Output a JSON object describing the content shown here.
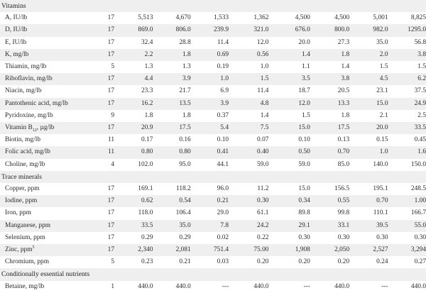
{
  "sections": [
    {
      "title": "Vitamins",
      "rows": [
        {
          "label": "A, IU/lb",
          "values": [
            "17",
            "5,513",
            "4,670",
            "1,533",
            "1,362",
            "4,500",
            "4,500",
            "5,001",
            "8,825"
          ]
        },
        {
          "label": "D, IU/lb",
          "values": [
            "17",
            "869.0",
            "806.0",
            "239.9",
            "321.0",
            "676.0",
            "800.0",
            "982.0",
            "1295.0"
          ]
        },
        {
          "label": "E, IU/lb",
          "values": [
            "17",
            "32.4",
            "28.8",
            "11.4",
            "12.0",
            "20.0",
            "27.3",
            "35.0",
            "56.8"
          ]
        },
        {
          "label": "K, mg/lb",
          "values": [
            "17",
            "2.2",
            "1.8",
            "0.69",
            "0.56",
            "1.4",
            "1.8",
            "2.0",
            "3.8"
          ]
        },
        {
          "label": "Thiamin, mg/lb",
          "values": [
            "5",
            "1.3",
            "1.3",
            "0.19",
            "1.0",
            "1.1",
            "1.4",
            "1.5",
            "1.5"
          ]
        },
        {
          "label": "Riboflavin, mg/lb",
          "values": [
            "17",
            "4.4",
            "3.9",
            "1.0",
            "1.5",
            "3.5",
            "3.8",
            "4.5",
            "6.2"
          ]
        },
        {
          "label": "Niacin, mg/lb",
          "values": [
            "17",
            "23.3",
            "21.7",
            "6.9",
            "11.4",
            "18.7",
            "20.5",
            "23.1",
            "37.5"
          ]
        },
        {
          "label": "Pantothenic acid, mg/lb",
          "values": [
            "17",
            "16.2",
            "13.5",
            "3.9",
            "4.8",
            "12.0",
            "13.3",
            "15.0",
            "24.9"
          ]
        },
        {
          "label": "Pyridoxine, mg/lb",
          "values": [
            "9",
            "1.8",
            "1.8",
            "0.37",
            "1.4",
            "1.5",
            "1.8",
            "2.1",
            "2.5"
          ]
        },
        {
          "label": "Vitamin B",
          "sub": "12",
          "suffix": ", µg/lb",
          "values": [
            "17",
            "20.9",
            "17.5",
            "5.4",
            "7.5",
            "15.0",
            "17.5",
            "20.0",
            "33.5"
          ]
        },
        {
          "label": "Biotin, mg/lb",
          "values": [
            "11",
            "0.17",
            "0.16",
            "0.10",
            "0.07",
            "0.10",
            "0.13",
            "0.15",
            "0.45"
          ]
        },
        {
          "label": "Folic acid, mg/lb",
          "values": [
            "11",
            "0.80",
            "0.80",
            "0.41",
            "0.40",
            "0.50",
            "0.70",
            "1.0",
            "1.6"
          ]
        },
        {
          "label": "Choline, mg/lb",
          "values": [
            "4",
            "102.0",
            "95.0",
            "44.1",
            "59.0",
            "59.0",
            "85.0",
            "140.0",
            "150.0"
          ]
        }
      ]
    },
    {
      "title": "Trace minerals",
      "rows": [
        {
          "label": "Copper, ppm",
          "values": [
            "17",
            "169.1",
            "118.2",
            "96.0",
            "11.2",
            "15.0",
            "156.5",
            "195.1",
            "248.5"
          ]
        },
        {
          "label": "Iodine, ppm",
          "values": [
            "17",
            "0.62",
            "0.54",
            "0.21",
            "0.30",
            "0.34",
            "0.55",
            "0.70",
            "1.00"
          ]
        },
        {
          "label": "Iron, ppm",
          "values": [
            "17",
            "118.0",
            "106.4",
            "29.0",
            "61.1",
            "89.8",
            "99.8",
            "110.1",
            "166.7"
          ]
        },
        {
          "label": "Manganese, ppm",
          "values": [
            "17",
            "33.5",
            "35.0",
            "7.8",
            "24.2",
            "29.1",
            "33.1",
            "39.5",
            "55.0"
          ]
        },
        {
          "label": "Selenium, ppm",
          "values": [
            "17",
            "0.29",
            "0.29",
            "0.02",
            "0.22",
            "0.30",
            "0.30",
            "0.30",
            "0.30"
          ]
        },
        {
          "label": "Zinc, ppm",
          "sup": "5",
          "values": [
            "17",
            "2,340",
            "2,081",
            "751.4",
            "75.00",
            "1,908",
            "2,050",
            "2,527",
            "3,294"
          ]
        },
        {
          "label": "Chromium, ppm",
          "values": [
            "5",
            "0.23",
            "0.21",
            "0.03",
            "0.20",
            "0.20",
            "0.20",
            "0.24",
            "0.27"
          ]
        }
      ]
    },
    {
      "title": "Conditionally essential nutrients",
      "rows": [
        {
          "label": "Betaine, mg/lb",
          "values": [
            "1",
            "440.0",
            "440.0",
            "---",
            "440.0",
            "---",
            "440.0",
            "---",
            "440.0"
          ]
        }
      ]
    }
  ]
}
